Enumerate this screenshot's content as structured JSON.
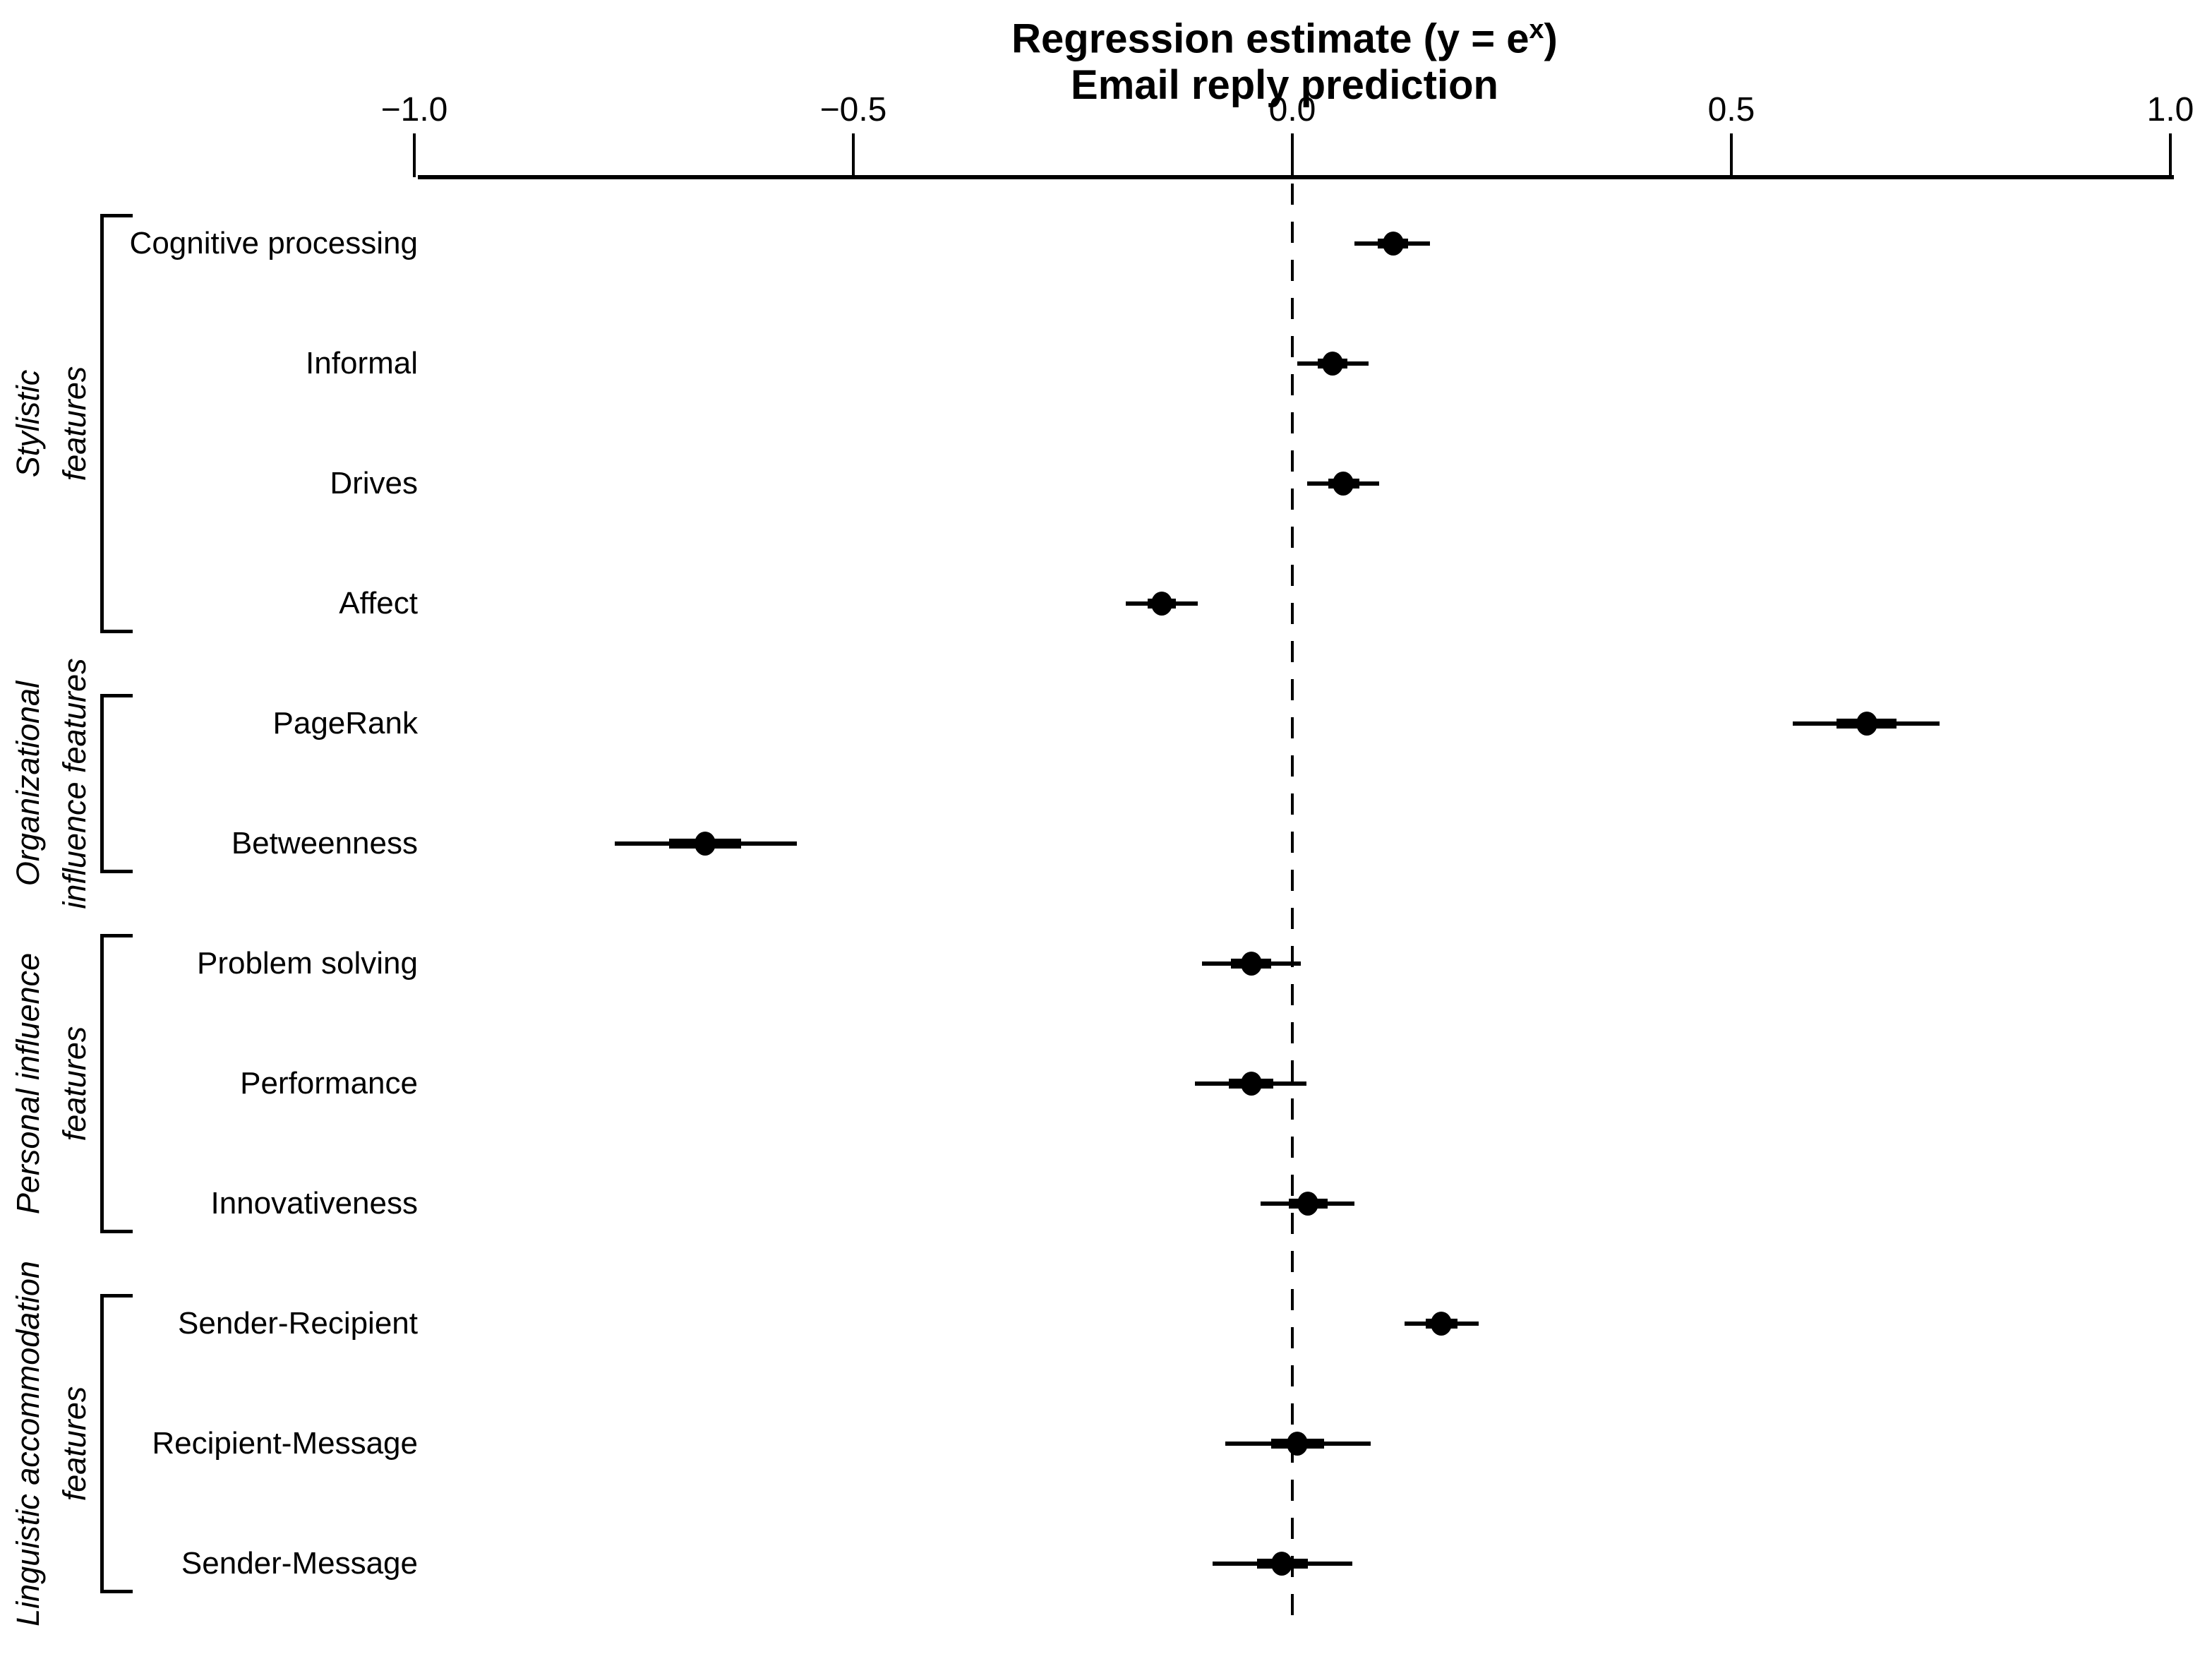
{
  "title": {
    "line1_prefix": "Regression estimate (y = e",
    "line1_sup": "x",
    "line1_suffix": ")",
    "line2": "Email reply prediction"
  },
  "colors": {
    "foreground": "#000000",
    "background": "#ffffff"
  },
  "chart_data": {
    "type": "scatter",
    "subtype": "forest-plot / coefficient dot plot with thick and thin confidence intervals",
    "title": "Regression estimate (y = e^x) — Email reply prediction",
    "xlabel": "",
    "ylabel": "",
    "xlim": [
      -1.0,
      1.0
    ],
    "grid": false,
    "reference_line_x": 0.0,
    "x_ticks": [
      -1.0,
      -0.5,
      0.0,
      0.5,
      1.0
    ],
    "x_tick_labels": [
      "−1.0",
      "−0.5",
      "0.0",
      "0.5",
      "1.0"
    ],
    "groups": [
      {
        "label_line1": "Stylistic",
        "label_line2": "features",
        "first_row": 0,
        "last_row": 3
      },
      {
        "label_line1": "Organizational",
        "label_line2": "influence features",
        "first_row": 4,
        "last_row": 5
      },
      {
        "label_line1": "Personal influence",
        "label_line2": "features",
        "first_row": 6,
        "last_row": 8
      },
      {
        "label_line1": "Linguistic accommodation",
        "label_line2": "features",
        "first_row": 9,
        "last_row": 11
      }
    ],
    "rows": [
      {
        "label": "Cognitive processing",
        "estimate": 0.115,
        "ci_thin": [
          0.071,
          0.157
        ],
        "ci_thick": [
          0.097,
          0.132
        ]
      },
      {
        "label": "Informal",
        "estimate": 0.046,
        "ci_thin": [
          0.006,
          0.087
        ],
        "ci_thick": [
          0.029,
          0.063
        ]
      },
      {
        "label": "Drives",
        "estimate": 0.058,
        "ci_thin": [
          0.017,
          0.099
        ],
        "ci_thick": [
          0.041,
          0.076
        ]
      },
      {
        "label": "Affect",
        "estimate": -0.149,
        "ci_thin": [
          -0.19,
          -0.108
        ],
        "ci_thick": [
          -0.165,
          -0.133
        ]
      },
      {
        "label": "PageRank",
        "estimate": 0.654,
        "ci_thin": [
          0.57,
          0.737
        ],
        "ci_thick": [
          0.62,
          0.688
        ]
      },
      {
        "label": "Betweenness",
        "estimate": -0.669,
        "ci_thin": [
          -0.772,
          -0.564
        ],
        "ci_thick": [
          -0.71,
          -0.628
        ]
      },
      {
        "label": "Problem solving",
        "estimate": -0.047,
        "ci_thin": [
          -0.103,
          0.01
        ],
        "ci_thick": [
          -0.07,
          -0.024
        ]
      },
      {
        "label": "Performance",
        "estimate": -0.047,
        "ci_thin": [
          -0.111,
          0.016
        ],
        "ci_thick": [
          -0.072,
          -0.022
        ]
      },
      {
        "label": "Innovativeness",
        "estimate": 0.018,
        "ci_thin": [
          -0.036,
          0.071
        ],
        "ci_thick": [
          -0.004,
          0.04
        ]
      },
      {
        "label": "Sender-Recipient",
        "estimate": 0.17,
        "ci_thin": [
          0.128,
          0.212
        ],
        "ci_thick": [
          0.152,
          0.188
        ]
      },
      {
        "label": "Recipient-Message",
        "estimate": 0.006,
        "ci_thin": [
          -0.076,
          0.089
        ],
        "ci_thick": [
          -0.024,
          0.036
        ]
      },
      {
        "label": "Sender-Message",
        "estimate": -0.012,
        "ci_thin": [
          -0.091,
          0.068
        ],
        "ci_thick": [
          -0.04,
          0.018
        ]
      }
    ]
  }
}
